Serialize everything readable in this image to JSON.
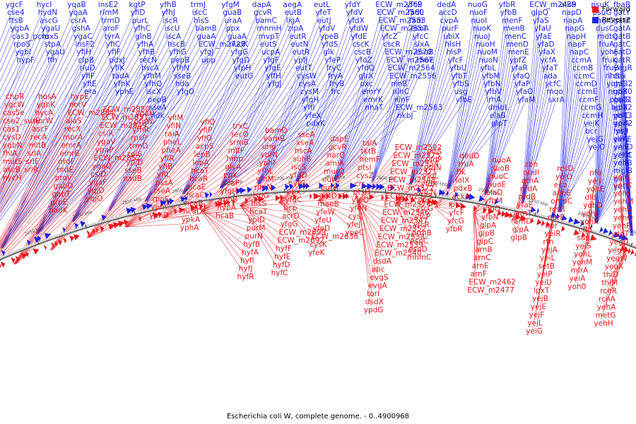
{
  "title": "Escherichia coli W, complete genome. - 0..4900968",
  "legend": [
    {
      "label": "Forward",
      "color": "#e8161b"
    },
    {
      "label": "Reverse",
      "color": "#1f22e8"
    }
  ],
  "ticks": [
    "3100 kbp",
    "3050 kbp",
    "3000 kbp",
    "2950 kbp",
    "2900 kbp",
    "2850 kbp",
    "2800 kbp",
    "2750 kbp",
    "2700 kbp",
    "2650 kbp",
    "2600 kbp",
    "2550 kbp",
    "2500 kbp",
    "2450 kbp",
    "2400 kbp",
    "2350 kbp"
  ],
  "reverse_columns": [
    [
      "ygcF",
      "cse4",
      "ftsB",
      "ygbA",
      "cas3_pcm",
      "rpoS",
      "ygbI",
      "hypF"
    ],
    [
      "hycI",
      "hydN",
      "ascG",
      "ygaU",
      "luxS",
      "stpA",
      "ygaU",
      "ffh"
    ],
    [
      "yqaB",
      "yqaA",
      "csrA",
      "gshA",
      "ygaC",
      "insF2",
      "yfiH",
      "clpB",
      "rluD",
      "yfiF",
      "yfiE",
      "era"
    ],
    [
      "insE2",
      "rimM",
      "trmD",
      "aroF",
      "tyrA",
      "yfiC",
      "yfiF",
      "pdxJ",
      "yfiK",
      "tadA",
      "yfhK",
      "yphE"
    ],
    [
      "kgtP",
      "yfiD",
      "purL",
      "yfhC",
      "glnB",
      "yfhA",
      "yfhB",
      "recN",
      "hscA",
      "yfhM",
      "yfhQ",
      "iscX",
      "pepB",
      "sseA",
      "ndk"
    ],
    [
      "yfhB",
      "yfhJ",
      "iscR",
      "iscU",
      "iscA",
      "hscB",
      "yfhG",
      "pepB",
      "yfhN",
      "sseB",
      "hda",
      "yfgO"
    ],
    [
      "trmJ",
      "iscC",
      "hisS",
      "bamB",
      "guaA",
      "ECW_m2727",
      "yfgJ",
      "upp"
    ],
    [
      "yfgM",
      "guaB",
      "uraA",
      "ppx",
      "guaA",
      "nudK",
      "yfgG",
      "yfgD",
      "yfpH",
      "eutG"
    ],
    [
      "dapA",
      "gcvR",
      "bamC",
      "mnmH",
      "mvpT",
      "eutS",
      "ucpA",
      "yfgF",
      "yfgE",
      "yffH",
      "yfgJ"
    ],
    [
      "aegA",
      "eutB",
      "ligA",
      "zipA",
      "eutR",
      "eutN",
      "eutR",
      "ypfJ",
      "eutT",
      "cysW",
      "cysA",
      "cysM",
      "yfgH",
      "yffI",
      "yfeX",
      "pdxK"
    ],
    [
      "eutL",
      "yfeT",
      "eutJ",
      "yfdV",
      "ypeB",
      "yfdS",
      "glk",
      "yfeP",
      "fryC",
      "fryA",
      "fryB",
      "frc"
    ],
    [
      "yfdY",
      "yfdV",
      "yfdX",
      "yfdW",
      "yfdE",
      "cscK",
      "cscB",
      "yfdZ",
      "yfdQ",
      "glrX",
      "oxc",
      "emrY",
      "emrK",
      "nhaT"
    ],
    [
      "ECW_m2569",
      "ECW_m2560",
      "ECW_m2553",
      "ECW_m2551",
      "yfcZ",
      "cscR",
      "ECW_m2570",
      "ECW_m2567",
      "ECW_m2564",
      "ECW_m2556",
      "ninB",
      "ninC",
      "ninF",
      "ECW_m2563",
      "nkbJ"
    ],
    [
      "yfcE",
      "fadL",
      "fadI",
      "esoA",
      "yfcC",
      "sixA",
      "esoB",
      "rhoE"
    ],
    [
      "dedA",
      "accD",
      "cvpA",
      "purF",
      "ubiX",
      "hisH",
      "hisP",
      "yfcF",
      "yfbU",
      "yfbT",
      "yfbS",
      "usg",
      "yfbE"
    ],
    [
      "nuoG",
      "nuoF",
      "nuoI",
      "nuoK",
      "nuoJ",
      "nuoH",
      "nuoM",
      "nuoN",
      "yfbL",
      "yfbM",
      "yfbN",
      "yfbV",
      "lrhA",
      "dmbL",
      "elaB",
      "glpT"
    ],
    [
      "yfbR",
      "yfbB",
      "menF",
      "menB",
      "menC",
      "menD",
      "menE",
      "ypfZ",
      "yfaR",
      "yfaQ",
      "yfaP",
      "yfaO",
      "yfaM"
    ],
    [
      "ECW_m2439",
      "glpQ",
      "yfaS",
      "yfaU",
      "yfaE",
      "yfaD",
      "yfaX",
      "ycfA",
      "yfaT",
      "ada",
      "ycfC",
      "mqo",
      "sxrA"
    ],
    [
      "alkB",
      "napD",
      "napA",
      "napG",
      "napH",
      "napF",
      "napC",
      "ccmA",
      "ccmB",
      "ccmC",
      "ccmD",
      "ccmE",
      "ccmF",
      "ccmG",
      "ccmH",
      "yejK",
      "bcr",
      "yejG",
      "yejO"
    ],
    [
      "psuK",
      "psuG",
      "mglC",
      "dusC",
      "mdtQ",
      "fruA",
      "yohF",
      "fruK",
      "fruB",
      "rihB",
      "yohC",
      "nupX",
      "pbpG",
      "bglX",
      "yeiC",
      "yeiA",
      "lysP",
      "cirA",
      "yeiE",
      "yeiM",
      "yeiB",
      "mglB",
      "galS",
      "yeiT"
    ],
    [
      "fbaB",
      "gatY",
      "gatZ",
      "gatA",
      "gatB",
      "gatC",
      "gatD",
      "gatR",
      "yegR",
      "cox",
      "gpB2",
      "gb80",
      "gb81",
      "gb82",
      "gb83",
      "gpA2",
      "mrp",
      "yehE",
      "yehD",
      "yehC",
      "yehB"
    ]
  ],
  "forward_columns": [
    [
      "chpR",
      "ygcW",
      "cas5e",
      "cse2_surE",
      "cas1",
      "cysD",
      "ygbN",
      "fhlA",
      "mutS",
      "ascB",
      "hycH"
    ],
    [
      "hosA",
      "ygbK",
      "hycA",
      "norW",
      "ascF",
      "recA",
      "mltB",
      "srlA",
      "srlE",
      "srlB"
    ],
    [
      "hypE",
      "norV",
      "ECW_m2884",
      "alaS",
      "recX",
      "mprA",
      "emrA",
      "emrB",
      "nrdF",
      "nrdE",
      "prov",
      "gabD",
      "gabT",
      "grpE",
      "nadK"
    ],
    [
      "ECW_m2850",
      "ECW_m2851",
      "ECW_m2849",
      "csiR",
      "ygaV",
      "ygaP",
      "ECW_m2852",
      "ygaQ",
      "csiD",
      "ygaF",
      "yqjD",
      "yqjO"
    ],
    [
      "ygaH",
      "proW",
      "yfhR",
      "rpsP",
      "trmD",
      "rplS",
      "ypjD",
      "sseB",
      "nadB"
    ],
    [
      "yfiM",
      "yfiN",
      "raiA",
      "pheL",
      "pheA",
      "yfiR",
      "yfiB",
      "yfiL",
      "pssA",
      "rseA",
      "rpoE",
      "yphC",
      "yphD"
    ],
    [
      "yfiQ",
      "yfiP",
      "yfiO",
      "acpS",
      "lepB",
      "lepA",
      "hcaT",
      "hcaR",
      "hcaE",
      "hcaC",
      "hcaB",
      "hcaD",
      "ypkA",
      "yphA"
    ],
    [
      "trxC",
      "recO",
      "srmB",
      "mltF",
      "hmp",
      "glyA",
      "ppx",
      "hcaF",
      "yfgH",
      "yphB",
      "hypA",
      "hcaB"
    ],
    [
      "bamD",
      "eamB",
      "ung",
      "ypfN",
      "yphF",
      "yfhL",
      "yfhM",
      "rlmN",
      "ispG",
      "hisS",
      "hcaT",
      "ypiD",
      "purM",
      "purN",
      "hyfB",
      "hyfA",
      "hyfI",
      "hyfJ",
      "hyfR"
    ],
    [
      "sseA",
      "xseA",
      "hscA",
      "suhB",
      "iscS",
      "yfgD",
      "hyfG",
      "ppx",
      "yfgC",
      "bcp",
      "acrD",
      "yfgG",
      "ECW_m2699",
      "ECW_m2692",
      "hyfF",
      "hyfE",
      "hyfD",
      "hyfC"
    ],
    [
      "dapE",
      "gcvR",
      "narQ",
      "amiA",
      "murQ",
      "eutQ",
      "eutH",
      "eutD",
      "maeB",
      "yfeW",
      "yfeU",
      "yfeD",
      "ECW_m2636",
      "cysK",
      "yfeK"
    ],
    [
      "talA",
      "tktB",
      "hemF",
      "ptsI",
      "cysZ",
      "crr",
      "ptsH",
      "yfeO",
      "yfeN",
      "cysJ",
      "yfeJ",
      "ypeC"
    ],
    [
      "ECW_m2592",
      "ECW_m2575",
      "ECW_m2554",
      "ECW_m2571",
      "ECW_m2548",
      "ECW_m2572",
      "ECW_m2573",
      "ECW_m2574",
      "ECW_m2546",
      "ECW_m2547",
      "ECW_m2552",
      "ECW_m2538",
      "ECW_m2539",
      "ECW_m2540",
      "dsdA",
      "abc",
      "evgS",
      "evgA",
      "torI",
      "dsdX",
      "ypdG"
    ],
    [
      "intS",
      "yfdP",
      "yfdN",
      "yfdL",
      "yfdK",
      "yfcN",
      "yfcC",
      "yfcG",
      "yfcP",
      "yfcR",
      "prmB",
      "esoC",
      "esoD",
      "mnmC"
    ],
    [
      "dedD",
      "truA",
      "flk",
      "folX",
      "pdxB",
      "ackA",
      "pta",
      "yfcF",
      "yfcG",
      "yfbR"
    ],
    [
      "nuoA",
      "nuoB",
      "nuoC",
      "nuoE",
      "elaD",
      "yfbM",
      "yfbQ",
      "yfbN",
      "glpA",
      "glpB",
      "glpC",
      "arnB",
      "arnC",
      "arnE",
      "arnF",
      "ECW_m2462",
      "ECW_m2477"
    ],
    [
      "zbn",
      "nudI",
      "arnA",
      "nrdA",
      "nrdB",
      "yfaE",
      "arnT",
      "arnD",
      "glpA",
      "glpB"
    ],
    [
      "rcsD",
      "yojO",
      "eco",
      "apbE",
      "ompC",
      "rcsB",
      "narP",
      "spr",
      "yeiR",
      "rtn",
      "yejA",
      "yeiL",
      "setB",
      "yeiP",
      "yeiU",
      "lpxT",
      "yejB",
      "yejE",
      "yejF",
      "yejL",
      "yeiG"
    ],
    [
      "nfo",
      "yeiI",
      "yohE",
      "dld",
      "yohD",
      "yohJ",
      "yohK",
      "cdd",
      "sanA",
      "yeiS",
      "yohL",
      "yohM",
      "mlrA",
      "yeiA",
      "yoh0"
    ],
    [
      "yehL",
      "yehK",
      "yehI",
      "yehM",
      "yehN",
      "yehQ",
      "yehR",
      "yegT",
      "yegU",
      "yegV",
      "yegW",
      "yegX",
      "thiD",
      "thiM",
      "rcnR",
      "rcnA",
      "yehA",
      "metG",
      "yehH"
    ]
  ]
}
